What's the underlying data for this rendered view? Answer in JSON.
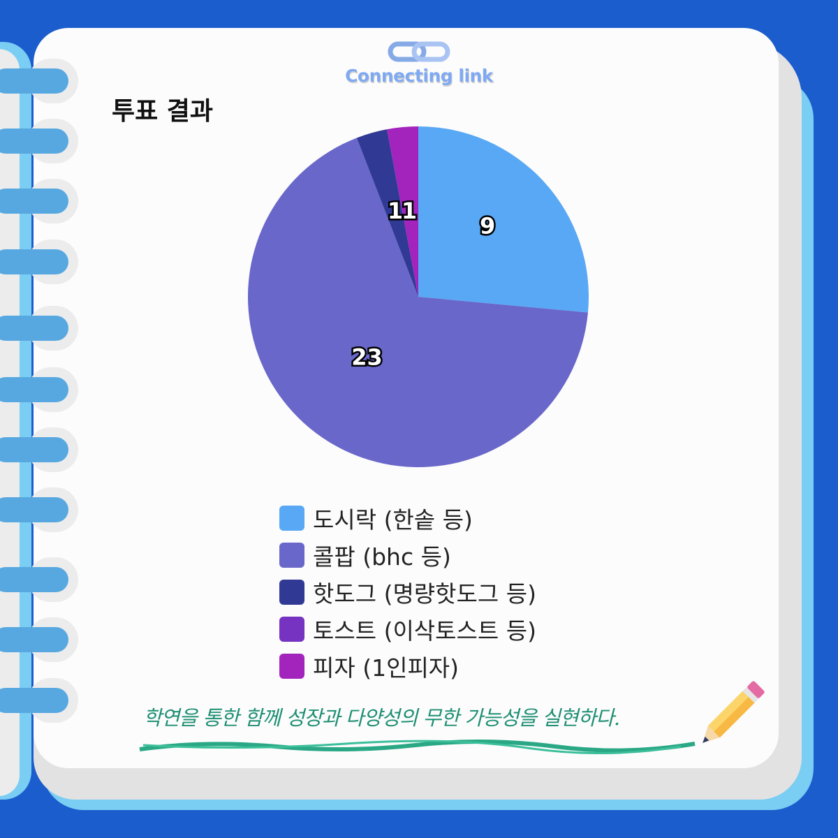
{
  "logo": {
    "text": "Connecting link",
    "icon": "chain-link-icon"
  },
  "title": "투표 결과",
  "colors": {
    "background": "#1b5dcd",
    "page": "#fcfcfc",
    "ring": "#57a8e0",
    "slogan": "#1e8f74"
  },
  "chart_data": {
    "type": "pie",
    "start": "top",
    "direction": "clockwise",
    "categories": [
      "도시락 (한솥 등)",
      "콜팝 (bhc 등)",
      "핫도그 (명량핫도그 등)",
      "토스트 (이삭토스트 등)",
      "피자 (1인피자)"
    ],
    "values": [
      9,
      23,
      1,
      0,
      1
    ],
    "data_labels": [
      "9",
      "23",
      "1",
      "",
      "1"
    ],
    "colors": [
      "#58a8f5",
      "#6967c9",
      "#303a94",
      "#7632c0",
      "#a324bd"
    ],
    "legend": "bottom"
  },
  "slogan": "학연을 통한 함께 성장과 다양성의 무한 가능성을 실현하다.",
  "decor": {
    "pencil": "pencil-icon",
    "rings": 12
  }
}
